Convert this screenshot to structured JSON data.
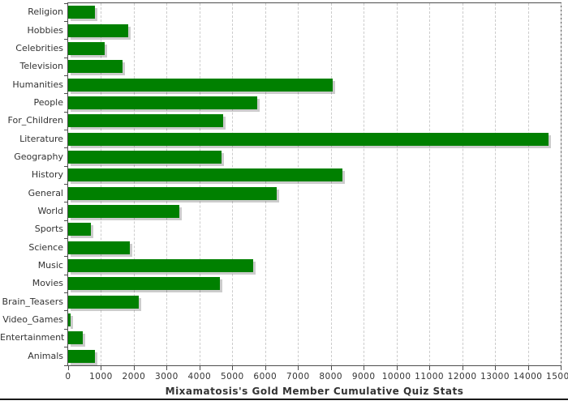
{
  "chart_data": {
    "type": "bar",
    "orientation": "horizontal",
    "title": "Mixamatosis's Gold Member Cumulative Quiz Stats",
    "categories": [
      "Religion",
      "Hobbies",
      "Celebrities",
      "Television",
      "Humanities",
      "People",
      "For_Children",
      "Literature",
      "Geography",
      "History",
      "General",
      "World",
      "Sports",
      "Science",
      "Music",
      "Movies",
      "Brain_Teasers",
      "Video_Games",
      "Entertainment",
      "Animals"
    ],
    "values": [
      820,
      1820,
      1120,
      1650,
      8050,
      5750,
      4720,
      14630,
      4670,
      8350,
      6350,
      3380,
      680,
      1870,
      5630,
      4620,
      2140,
      70,
      440,
      820
    ],
    "xlabel": "",
    "ylabel": "",
    "xlim": [
      0,
      15000
    ],
    "x_ticks": [
      0,
      1000,
      2000,
      3000,
      4000,
      5000,
      6000,
      7000,
      8000,
      9000,
      10000,
      11000,
      12000,
      13000,
      14000,
      15000
    ],
    "grid": "vertical-dashed",
    "legend": "none",
    "colors": {
      "bar": "#008000",
      "bar_shadow": "#cccccc",
      "gridline": "#cccccc",
      "plot_border": "#4d4d4d",
      "tick_label": "#333333",
      "title": "#333333",
      "background": "#ffffff"
    }
  }
}
